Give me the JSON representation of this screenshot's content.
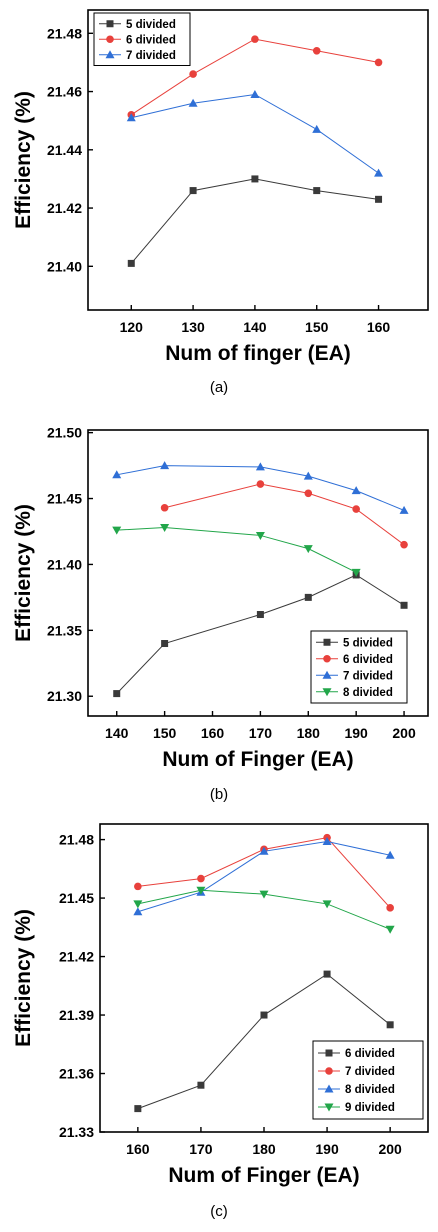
{
  "chart_data": [
    {
      "type": "line",
      "caption": "(a)",
      "xlabel": "Num of finger  (EA)",
      "ylabel": "Efficiency  (%)",
      "xlim": [
        113,
        168
      ],
      "ylim": [
        21.385,
        21.488
      ],
      "xticks": [
        120,
        130,
        140,
        150,
        160
      ],
      "xtick_labels": [
        "120",
        "130",
        "140",
        "150",
        "160"
      ],
      "yticks": [
        21.4,
        21.42,
        21.44,
        21.46,
        21.48
      ],
      "ytick_labels": [
        "21.40",
        "21.42",
        "21.44",
        "21.46",
        "21.48"
      ],
      "legend_position": "top-left",
      "series": [
        {
          "name": "5 divided",
          "color": "#3a3a3a",
          "marker": "square",
          "x": [
            120,
            130,
            140,
            150,
            160
          ],
          "y": [
            21.401,
            21.426,
            21.43,
            21.426,
            21.423
          ]
        },
        {
          "name": "6 divided",
          "color": "#e8413c",
          "marker": "circle",
          "x": [
            120,
            130,
            140,
            150,
            160
          ],
          "y": [
            21.452,
            21.466,
            21.478,
            21.474,
            21.47
          ]
        },
        {
          "name": "7 divided",
          "color": "#2f6fd6",
          "marker": "triangle-up",
          "x": [
            120,
            130,
            140,
            150,
            160
          ],
          "y": [
            21.451,
            21.456,
            21.459,
            21.447,
            21.432
          ]
        }
      ]
    },
    {
      "type": "line",
      "caption": "(b)",
      "xlabel": "Num of Finger (EA)",
      "ylabel": "Efficiency  (%)",
      "xlim": [
        134,
        205
      ],
      "ylim": [
        21.285,
        21.502
      ],
      "xticks": [
        140,
        150,
        160,
        170,
        180,
        190,
        200
      ],
      "xtick_labels": [
        "140",
        "150",
        "160",
        "170",
        "180",
        "190",
        "200"
      ],
      "yticks": [
        21.3,
        21.35,
        21.4,
        21.45,
        21.5
      ],
      "ytick_labels": [
        "21.30",
        "21.35",
        "21.40",
        "21.45",
        "21.50"
      ],
      "legend_position": "bottom-right",
      "series": [
        {
          "name": "5 divided",
          "color": "#3a3a3a",
          "marker": "square",
          "x": [
            140,
            150,
            170,
            180,
            190,
            200
          ],
          "y": [
            21.302,
            21.34,
            21.362,
            21.375,
            21.392,
            21.369
          ]
        },
        {
          "name": "6 divided",
          "color": "#e8413c",
          "marker": "circle",
          "x": [
            150,
            170,
            180,
            190,
            200
          ],
          "y": [
            21.443,
            21.461,
            21.454,
            21.442,
            21.415
          ]
        },
        {
          "name": "7 divided",
          "color": "#2f6fd6",
          "marker": "triangle-up",
          "x": [
            140,
            150,
            170,
            180,
            190,
            200
          ],
          "y": [
            21.468,
            21.475,
            21.474,
            21.467,
            21.456,
            21.441
          ]
        },
        {
          "name": "8 divided",
          "color": "#22a64a",
          "marker": "triangle-down",
          "x": [
            140,
            150,
            170,
            180,
            190
          ],
          "y": [
            21.426,
            21.428,
            21.422,
            21.412,
            21.394
          ]
        }
      ]
    },
    {
      "type": "line",
      "caption": "(c)",
      "xlabel": "Num of Finger  (EA)",
      "ylabel": "Efficiency  (%)",
      "xlim": [
        154,
        206
      ],
      "ylim": [
        21.33,
        21.488
      ],
      "xticks": [
        160,
        170,
        180,
        190,
        200
      ],
      "xtick_labels": [
        "160",
        "170",
        "180",
        "190",
        "200"
      ],
      "yticks": [
        21.33,
        21.36,
        21.39,
        21.42,
        21.45,
        21.48
      ],
      "ytick_labels": [
        "21.33",
        "21.36",
        "21.39",
        "21.42",
        "21.45",
        "21.48"
      ],
      "legend_position": "bottom-right",
      "series": [
        {
          "name": "6 divided",
          "color": "#3a3a3a",
          "marker": "square",
          "x": [
            160,
            170,
            180,
            190,
            200
          ],
          "y": [
            21.342,
            21.354,
            21.39,
            21.411,
            21.385
          ]
        },
        {
          "name": "7 divided",
          "color": "#e8413c",
          "marker": "circle",
          "x": [
            160,
            170,
            180,
            190,
            200
          ],
          "y": [
            21.456,
            21.46,
            21.475,
            21.481,
            21.445
          ]
        },
        {
          "name": "8 divided",
          "color": "#2f6fd6",
          "marker": "triangle-up",
          "x": [
            160,
            170,
            180,
            190,
            200
          ],
          "y": [
            21.443,
            21.453,
            21.474,
            21.479,
            21.472
          ]
        },
        {
          "name": "9 divided",
          "color": "#22a64a",
          "marker": "triangle-down",
          "x": [
            160,
            170,
            180,
            190,
            200
          ],
          "y": [
            21.447,
            21.454,
            21.452,
            21.447,
            21.434
          ]
        }
      ]
    }
  ]
}
